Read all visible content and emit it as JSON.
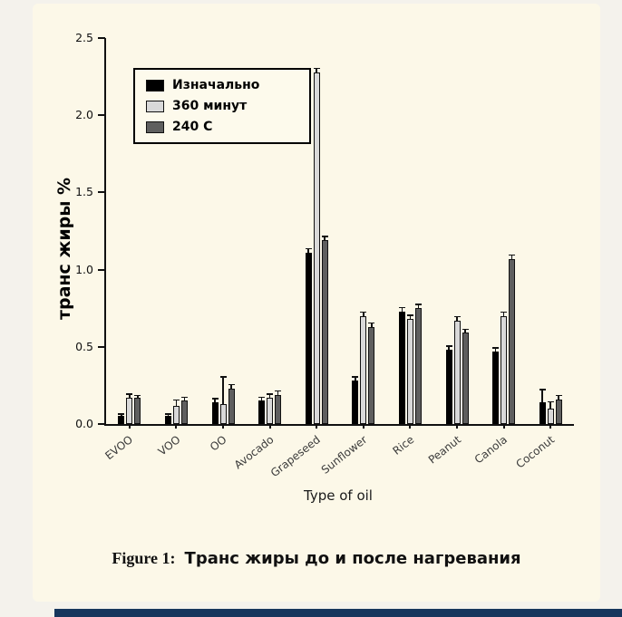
{
  "figure": {
    "caption_label": "Figure 1:",
    "caption_text": "Транс жиры до и после нагревания"
  },
  "chart_data": {
    "type": "bar",
    "title": "",
    "xlabel": "Type of oil",
    "ylabel": "транс жиры %",
    "ylim": [
      0,
      2.5
    ],
    "yticks": [
      "0.0",
      "0.5",
      "1.0",
      "1.5",
      "2.0",
      "2.5"
    ],
    "grid": false,
    "legend_position": "upper-left",
    "categories": [
      "EVOO",
      "VOO",
      "OO",
      "Avocado",
      "Grapeseed",
      "Sunflower",
      "Rice",
      "Peanut",
      "Canola",
      "Coconut"
    ],
    "series": [
      {
        "name": "Изначально",
        "color": "#000000",
        "values": [
          0.05,
          0.05,
          0.14,
          0.15,
          1.11,
          0.28,
          0.73,
          0.48,
          0.47,
          0.14
        ],
        "errors": [
          0.01,
          0.01,
          0.02,
          0.02,
          0.02,
          0.02,
          0.02,
          0.02,
          0.02,
          0.08
        ]
      },
      {
        "name": "360 минут",
        "color": "#d9d9d9",
        "values": [
          0.17,
          0.12,
          0.13,
          0.17,
          2.28,
          0.7,
          0.68,
          0.67,
          0.7,
          0.1
        ],
        "errors": [
          0.02,
          0.03,
          0.17,
          0.02,
          0.02,
          0.02,
          0.02,
          0.02,
          0.02,
          0.04
        ]
      },
      {
        "name": "240 C",
        "color": "#5f5f5f",
        "values": [
          0.17,
          0.15,
          0.23,
          0.19,
          1.19,
          0.63,
          0.75,
          0.59,
          1.07,
          0.16
        ],
        "errors": [
          0.01,
          0.02,
          0.02,
          0.02,
          0.02,
          0.02,
          0.02,
          0.02,
          0.02,
          0.02
        ]
      }
    ]
  },
  "colors": {
    "page_bg": "#f4f2ec",
    "panel_bg": "#fcf8e8",
    "accent_bar": "#17365d",
    "axis": "#111111"
  }
}
